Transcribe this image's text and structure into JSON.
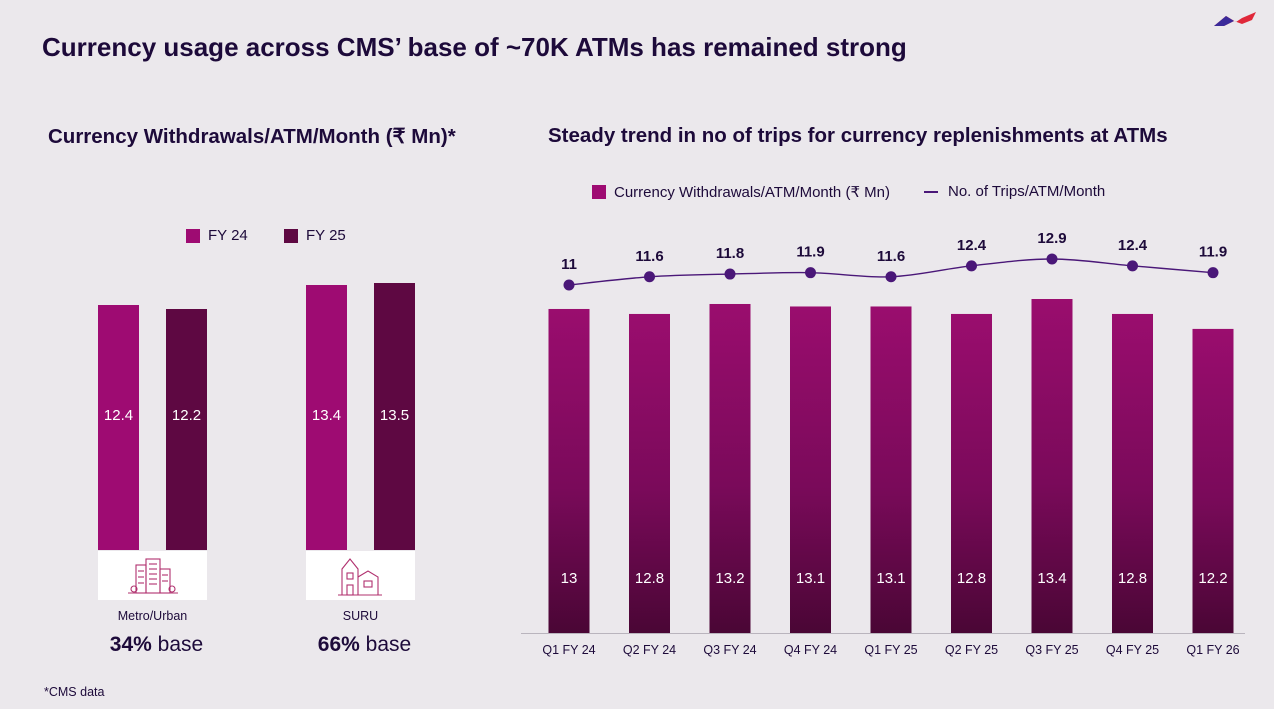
{
  "page_title": "Currency usage across CMS’ base of ~70K ATMs has remained strong",
  "footnote": "*CMS data",
  "colors": {
    "fy24": "#9e0b72",
    "fy25": "#5e0842",
    "line": "#4a1778",
    "text": "#1d0a3a"
  },
  "chart_data": [
    {
      "type": "bar",
      "title": "Currency Withdrawals/ATM/Month (₹ Mn)*",
      "categories": [
        "Metro/Urban",
        "SURU"
      ],
      "category_bases": [
        {
          "pct": "34%",
          "suffix": " base"
        },
        {
          "pct": "66%",
          "suffix": " base"
        }
      ],
      "series": [
        {
          "name": "FY 24",
          "values": [
            12.4,
            13.4
          ]
        },
        {
          "name": "FY 25",
          "values": [
            12.2,
            13.5
          ]
        }
      ],
      "ylim": [
        0,
        14
      ]
    },
    {
      "type": "bar+line",
      "title": "Steady trend in no of trips for currency replenishments at ATMs",
      "categories": [
        "Q1 FY 24",
        "Q2 FY 24",
        "Q3 FY 24",
        "Q4 FY 24",
        "Q1 FY 25",
        "Q2 FY 25",
        "Q3 FY 25",
        "Q4 FY 25",
        "Q1 FY 26"
      ],
      "series": [
        {
          "name": "Currency Withdrawals/ATM/Month (₹ Mn)",
          "kind": "bar",
          "values": [
            13,
            12.8,
            13.2,
            13.1,
            13.1,
            12.8,
            13.4,
            12.8,
            12.2
          ]
        },
        {
          "name": "No. of Trips/ATM/Month",
          "kind": "line",
          "values": [
            11,
            11.6,
            11.8,
            11.9,
            11.6,
            12.4,
            12.9,
            12.4,
            11.9
          ]
        }
      ]
    }
  ]
}
